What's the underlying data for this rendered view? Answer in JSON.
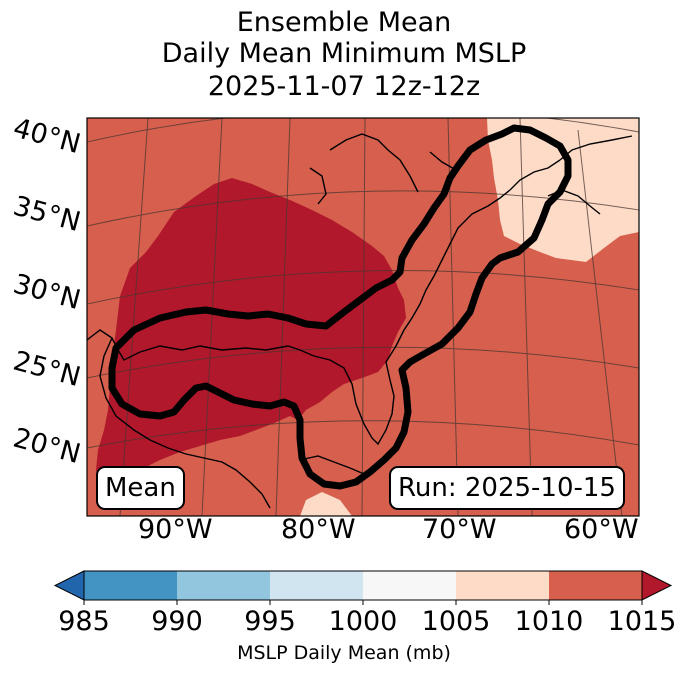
{
  "title": {
    "line1": "Ensemble Mean",
    "line2": "Daily Mean Minimum MSLP",
    "line3": "2025-11-07 12z-12z"
  },
  "map": {
    "latitude_labels": [
      "40°N",
      "35°N",
      "30°N",
      "25°N",
      "20°N"
    ],
    "longitude_labels": [
      "90°W",
      "80°W",
      "70°W",
      "60°W"
    ],
    "mean_box_label": "Mean",
    "run_box_label": "Run: 2025-10-15",
    "colors": {
      "1010_1015": "#d6604d",
      "1005_1010": "#fddbc7",
      "above_1015": "#b2182b"
    }
  },
  "colorbar": {
    "ticks": [
      "985",
      "990",
      "995",
      "1000",
      "1005",
      "1010",
      "1015"
    ],
    "label": "MSLP Daily Mean (mb)",
    "colors": [
      "#2166ac",
      "#4393c3",
      "#92c5de",
      "#d1e5f0",
      "#f7f7f7",
      "#fddbc7",
      "#d6604d",
      "#b2182b"
    ]
  }
}
